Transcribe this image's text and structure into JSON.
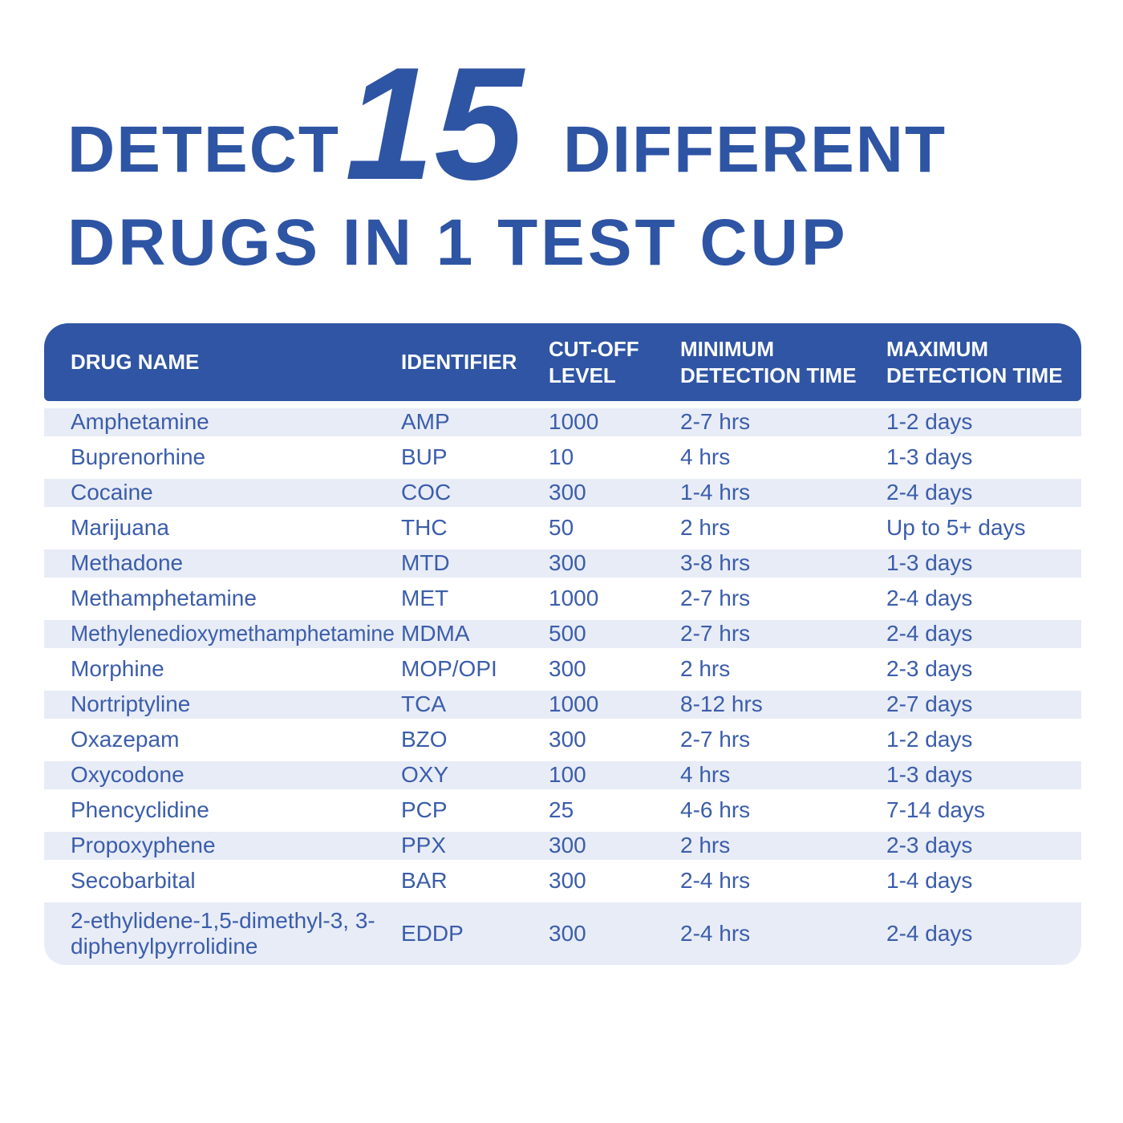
{
  "title": {
    "detect": "DETECT",
    "number": "15",
    "different": "DIFFERENT",
    "line2": "DRUGS IN 1 TEST CUP"
  },
  "colors": {
    "accent_blue": "#2e54a4",
    "header_bg": "#2f55a4",
    "header_text": "#ffffff",
    "row_shade": "#e8ecf6",
    "cell_text": "#3b5dab",
    "background": "#ffffff"
  },
  "table": {
    "headers": [
      "DRUG NAME",
      "IDENTIFIER",
      "CUT-OFF LEVEL",
      "MINIMUM DETECTION TIME",
      "MAXIMUM DETECTION TIME"
    ],
    "rows": [
      {
        "drug": "Amphetamine",
        "identifier": "AMP",
        "cutoff": "1000",
        "min": "2-7 hrs",
        "max": "1-2 days"
      },
      {
        "drug": "Buprenorhine",
        "identifier": "BUP",
        "cutoff": "10",
        "min": "4 hrs",
        "max": "1-3 days"
      },
      {
        "drug": "Cocaine",
        "identifier": "COC",
        "cutoff": "300",
        "min": "1-4 hrs",
        "max": "2-4 days"
      },
      {
        "drug": "Marijuana",
        "identifier": "THC",
        "cutoff": "50",
        "min": "2 hrs",
        "max": "Up to 5+ days"
      },
      {
        "drug": "Methadone",
        "identifier": "MTD",
        "cutoff": "300",
        "min": "3-8 hrs",
        "max": "1-3 days"
      },
      {
        "drug": "Methamphetamine",
        "identifier": "MET",
        "cutoff": "1000",
        "min": "2-7 hrs",
        "max": "2-4 days"
      },
      {
        "drug": "Methylenedioxymethamphetamine",
        "identifier": "MDMA",
        "cutoff": "500",
        "min": "2-7 hrs",
        "max": "2-4 days"
      },
      {
        "drug": "Morphine",
        "identifier": "MOP/OPI",
        "cutoff": "300",
        "min": "2 hrs",
        "max": "2-3 days"
      },
      {
        "drug": "Nortriptyline",
        "identifier": "TCA",
        "cutoff": "1000",
        "min": "8-12 hrs",
        "max": "2-7 days"
      },
      {
        "drug": "Oxazepam",
        "identifier": "BZO",
        "cutoff": "300",
        "min": "2-7 hrs",
        "max": "1-2 days"
      },
      {
        "drug": "Oxycodone",
        "identifier": "OXY",
        "cutoff": "100",
        "min": "4 hrs",
        "max": "1-3 days"
      },
      {
        "drug": "Phencyclidine",
        "identifier": "PCP",
        "cutoff": "25",
        "min": "4-6 hrs",
        "max": "7-14 days"
      },
      {
        "drug": "Propoxyphene",
        "identifier": "PPX",
        "cutoff": "300",
        "min": "2 hrs",
        "max": "2-3 days"
      },
      {
        "drug": "Secobarbital",
        "identifier": "BAR",
        "cutoff": "300",
        "min": "2-4 hrs",
        "max": "1-4 days"
      },
      {
        "drug": "2-ethylidene-1,5-dimethyl-3, 3-diphenylpyrrolidine",
        "identifier": "EDDP",
        "cutoff": "300",
        "min": "2-4 hrs",
        "max": "2-4 days"
      }
    ]
  }
}
